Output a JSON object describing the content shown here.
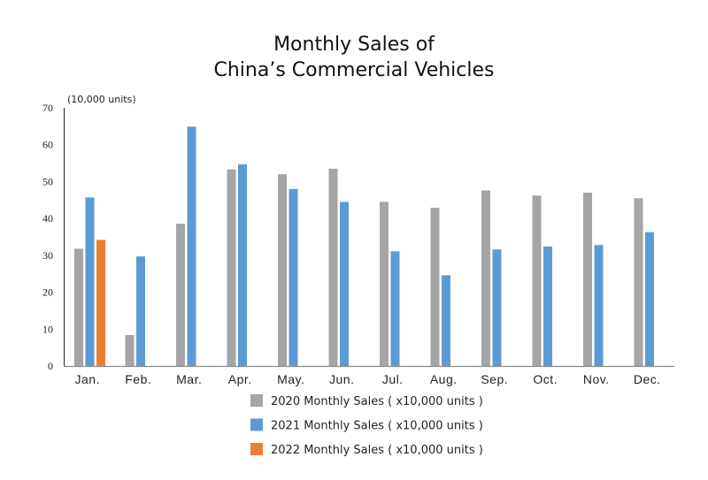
{
  "chart_data": {
    "type": "bar",
    "title": [
      "Monthly Sales of",
      "China’s Commercial Vehicles"
    ],
    "ylabel": "(10,000 units)",
    "ylim": [
      0,
      70
    ],
    "yticks": [
      "0",
      "10",
      "20",
      "30",
      "40",
      "50",
      "60",
      "70"
    ],
    "grid": false,
    "legend_position": "bottom",
    "categories": [
      "Jan.",
      "Feb.",
      "Mar.",
      "Apr.",
      "May.",
      "Jun.",
      "Jul.",
      "Aug.",
      "Sep.",
      "Oct.",
      "Nov.",
      "Dec."
    ],
    "series": [
      {
        "name": "2020 Monthly Sales ( x10,000 units )",
        "color": "#a5a5a5",
        "values": [
          31.8,
          8.4,
          38.6,
          53.3,
          52.0,
          53.5,
          44.5,
          42.9,
          47.6,
          46.2,
          47.0,
          45.5
        ]
      },
      {
        "name": "2021 Monthly Sales ( x10,000 units )",
        "color": "#5b9bd5",
        "values": [
          45.7,
          29.7,
          64.9,
          54.7,
          48.0,
          44.5,
          31.1,
          24.6,
          31.6,
          32.4,
          32.8,
          36.3
        ]
      },
      {
        "name": "2022 Monthly Sales ( x10,000 units )",
        "color": "#ed7d31",
        "values": [
          34.2,
          null,
          null,
          null,
          null,
          null,
          null,
          null,
          null,
          null,
          null,
          null
        ]
      }
    ]
  }
}
